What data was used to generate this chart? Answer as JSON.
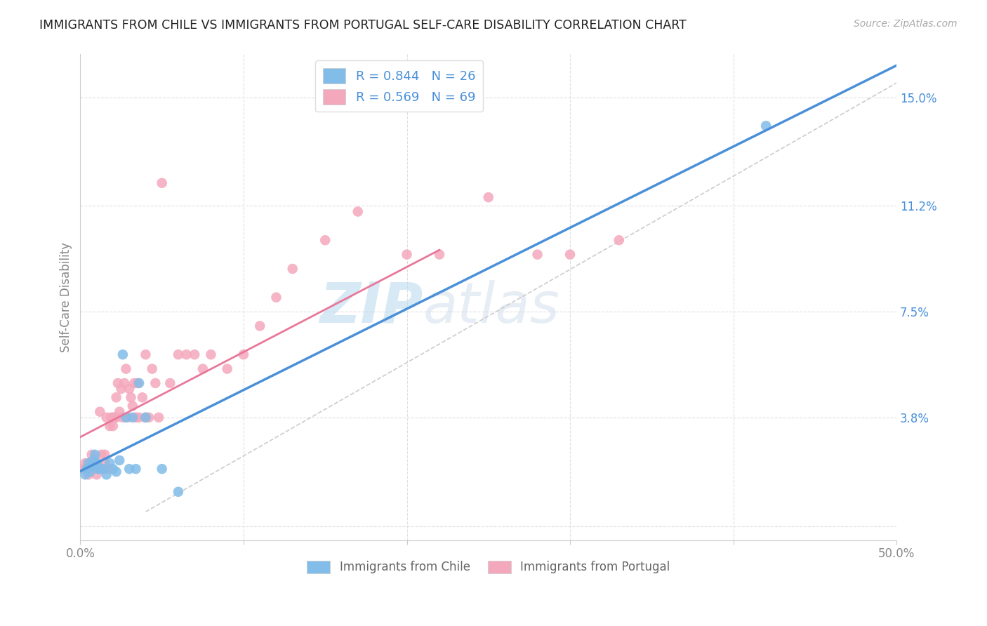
{
  "title": "IMMIGRANTS FROM CHILE VS IMMIGRANTS FROM PORTUGAL SELF-CARE DISABILITY CORRELATION CHART",
  "source": "Source: ZipAtlas.com",
  "ylabel": "Self-Care Disability",
  "xlim": [
    0.0,
    0.5
  ],
  "ylim": [
    -0.005,
    0.165
  ],
  "ytick_positions": [
    0.0,
    0.038,
    0.075,
    0.112,
    0.15
  ],
  "ytick_labels": [
    "",
    "3.8%",
    "7.5%",
    "11.2%",
    "15.0%"
  ],
  "chile_R": 0.844,
  "chile_N": 26,
  "portugal_R": 0.569,
  "portugal_N": 69,
  "chile_color": "#82bce8",
  "portugal_color": "#f4a8bc",
  "chile_line_color": "#4a90d9",
  "portugal_line_color": "#e8789a",
  "dashed_line_color": "#cccccc",
  "background_color": "#ffffff",
  "grid_color": "#e0e0e0",
  "title_color": "#222222",
  "source_color": "#aaaaaa",
  "watermark_color": "#ddeeff",
  "watermark": "ZIPatlas",
  "right_tick_color": "#4a90d9",
  "ylabel_color": "#888888",
  "xtick_color": "#888888",
  "chile_points_x": [
    0.003,
    0.004,
    0.005,
    0.006,
    0.007,
    0.008,
    0.009,
    0.01,
    0.011,
    0.012,
    0.014,
    0.016,
    0.018,
    0.02,
    0.022,
    0.024,
    0.026,
    0.028,
    0.03,
    0.032,
    0.034,
    0.036,
    0.04,
    0.05,
    0.06,
    0.42
  ],
  "chile_points_y": [
    0.018,
    0.02,
    0.022,
    0.019,
    0.021,
    0.023,
    0.025,
    0.022,
    0.02,
    0.02,
    0.02,
    0.018,
    0.022,
    0.02,
    0.019,
    0.023,
    0.06,
    0.038,
    0.02,
    0.038,
    0.02,
    0.05,
    0.038,
    0.02,
    0.012,
    0.14
  ],
  "portugal_points_x": [
    0.002,
    0.003,
    0.004,
    0.005,
    0.005,
    0.006,
    0.007,
    0.008,
    0.008,
    0.009,
    0.01,
    0.01,
    0.011,
    0.012,
    0.012,
    0.013,
    0.014,
    0.015,
    0.015,
    0.016,
    0.017,
    0.018,
    0.019,
    0.02,
    0.02,
    0.021,
    0.022,
    0.022,
    0.023,
    0.024,
    0.025,
    0.026,
    0.027,
    0.028,
    0.029,
    0.03,
    0.031,
    0.032,
    0.033,
    0.034,
    0.035,
    0.036,
    0.038,
    0.04,
    0.04,
    0.042,
    0.044,
    0.046,
    0.048,
    0.05,
    0.055,
    0.06,
    0.065,
    0.07,
    0.075,
    0.08,
    0.09,
    0.1,
    0.11,
    0.12,
    0.13,
    0.15,
    0.17,
    0.2,
    0.22,
    0.25,
    0.28,
    0.3,
    0.33
  ],
  "portugal_points_y": [
    0.02,
    0.022,
    0.02,
    0.018,
    0.022,
    0.02,
    0.025,
    0.022,
    0.02,
    0.022,
    0.022,
    0.018,
    0.02,
    0.02,
    0.04,
    0.025,
    0.02,
    0.025,
    0.022,
    0.038,
    0.02,
    0.035,
    0.038,
    0.035,
    0.038,
    0.038,
    0.038,
    0.045,
    0.05,
    0.04,
    0.048,
    0.038,
    0.05,
    0.055,
    0.038,
    0.048,
    0.045,
    0.042,
    0.05,
    0.038,
    0.05,
    0.038,
    0.045,
    0.038,
    0.06,
    0.038,
    0.055,
    0.05,
    0.038,
    0.12,
    0.05,
    0.06,
    0.06,
    0.06,
    0.055,
    0.06,
    0.055,
    0.06,
    0.07,
    0.08,
    0.09,
    0.1,
    0.11,
    0.095,
    0.095,
    0.115,
    0.095,
    0.095,
    0.1
  ]
}
